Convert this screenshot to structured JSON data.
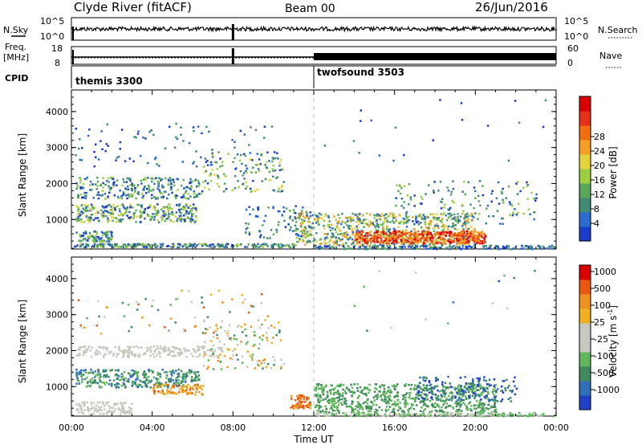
{
  "header": {
    "station": "Clyde River (fitACF)",
    "beam": "Beam 00",
    "date": "26/Jun/2016"
  },
  "labels": {
    "nsky": "N.Sky",
    "nsearch": "N.Search",
    "freq_line1": "Freq.",
    "freq_line2": "[MHz]",
    "nave": "Nave",
    "cpid": "CPID",
    "tick_1e5": "10^5",
    "tick_1e0": "10^0",
    "freq_18": "18",
    "freq_8": "8",
    "nave_60": "60",
    "nave_0": "0"
  },
  "cpid_segments": [
    {
      "name": "themis 3300",
      "start_hour": 0
    },
    {
      "name": "twofsound 3503",
      "start_hour": 12
    }
  ],
  "chart_data": [
    {
      "type": "heatmap",
      "panel": "power",
      "xlabel": "",
      "ylabel": "Slant Range [km]",
      "colorbar_label": "Power [dB]",
      "xlim": [
        0,
        24
      ],
      "ylim": [
        180,
        4600
      ],
      "yticks": [
        1000,
        2000,
        3000,
        4000
      ],
      "colorbar_ticks": [
        4,
        8,
        12,
        16,
        20,
        24,
        28
      ],
      "colorscale": [
        "#1c3ccc",
        "#2c6ad0",
        "#3f8c76",
        "#5aa85a",
        "#9cd040",
        "#e6d23c",
        "#f5a020",
        "#f07010",
        "#e83018",
        "#dd0000"
      ]
    },
    {
      "type": "heatmap",
      "panel": "velocity",
      "xlabel": "Time UT",
      "ylabel": "Slant Range [km]",
      "colorbar_label": "Velocity [m s-1]",
      "xlim": [
        0,
        24
      ],
      "ylim": [
        180,
        4600
      ],
      "yticks": [
        1000,
        2000,
        3000,
        4000
      ],
      "xticks": [
        "00:00",
        "04:00",
        "08:00",
        "12:00",
        "16:00",
        "20:00",
        "00:00"
      ],
      "colorbar_ticks": [
        "1000",
        "500",
        "100",
        "25",
        "-25",
        "-100",
        "-500",
        "-1000"
      ],
      "colorscale": [
        "#2040c8",
        "#2f70b8",
        "#3f8a5c",
        "#5fb85a",
        "#c8c8c0",
        "#c8c8c0",
        "#f0b020",
        "#f09020",
        "#e85810",
        "#dd0000"
      ]
    }
  ],
  "velocity_units": {
    "main": "Velocity [m s",
    "sup": "-1",
    "close": "]"
  }
}
